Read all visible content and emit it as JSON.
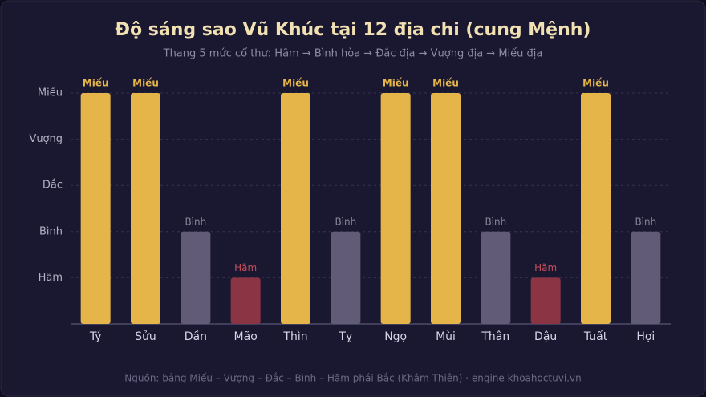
{
  "chart_data": {
    "type": "bar",
    "title": "Độ sáng sao Vũ Khúc tại 12 địa chi (cung Mệnh)",
    "subtitle": "Thang 5 mức cổ thư: Hãm → Bình hòa → Đắc địa → Vượng địa → Miếu địa",
    "footer": "Nguồn: bảng Miếu – Vượng – Đắc – Bình – Hãm phái Bắc (Khâm Thiên) · engine khoahoctuvi.vn",
    "categories": [
      "Tý",
      "Sửu",
      "Dần",
      "Mão",
      "Thìn",
      "Tỵ",
      "Ngọ",
      "Mùi",
      "Thân",
      "Dậu",
      "Tuất",
      "Hợi"
    ],
    "values": [
      5,
      5,
      2,
      1,
      5,
      2,
      5,
      5,
      2,
      1,
      5,
      2
    ],
    "value_labels": [
      "Miếu",
      "Miếu",
      "Bình",
      "Hãm",
      "Miếu",
      "Bình",
      "Miếu",
      "Miếu",
      "Bình",
      "Hãm",
      "Miếu",
      "Bình"
    ],
    "colors": [
      "#e5b54a",
      "#e5b54a",
      "#625b78",
      "#8a3444",
      "#e5b54a",
      "#625b78",
      "#e5b54a",
      "#e5b54a",
      "#625b78",
      "#8a3444",
      "#e5b54a",
      "#625b78"
    ],
    "label_colors": [
      "#e5b54a",
      "#e5b54a",
      "#8a859c",
      "#c24d5e",
      "#e5b54a",
      "#8a859c",
      "#e5b54a",
      "#e5b54a",
      "#8a859c",
      "#c24d5e",
      "#e5b54a",
      "#8a859c"
    ],
    "ylim": [
      0,
      5
    ],
    "yticks": [
      {
        "value": 1,
        "label": "Hãm"
      },
      {
        "value": 2,
        "label": "Bình"
      },
      {
        "value": 3,
        "label": "Đắc"
      },
      {
        "value": 4,
        "label": "Vượng"
      },
      {
        "value": 5,
        "label": "Miếu"
      }
    ],
    "grid": true
  }
}
